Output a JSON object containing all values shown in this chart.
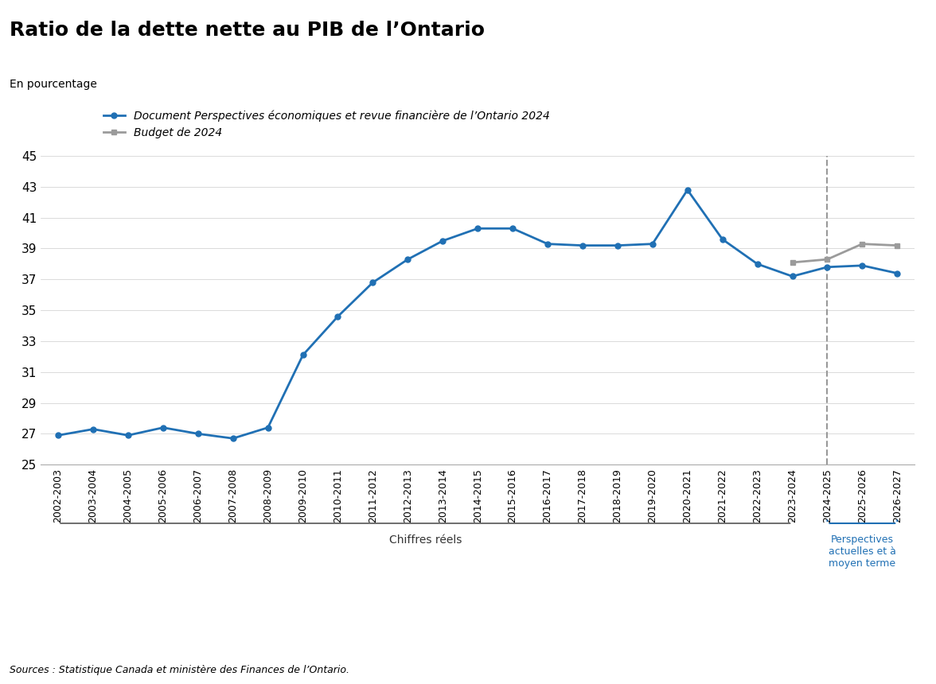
{
  "title": "Ratio de la dette nette au PIB de l’Ontario",
  "ylabel": "En pourcentage",
  "source": "Sources : Statistique Canada et ministère des Finances de l’Ontario.",
  "blue_series_labels": [
    "2002-2003",
    "2003-2004",
    "2004-2005",
    "2005-2006",
    "2006-2007",
    "2007-2008",
    "2008-2009",
    "2009-2010",
    "2010-2011",
    "2011-2012",
    "2012-2013",
    "2013-2014",
    "2014-2015",
    "2015-2016",
    "2016-2017",
    "2017-2018",
    "2018-2019",
    "2019-2020",
    "2020-2021",
    "2021-2022",
    "2022-2023",
    "2023-2024",
    "2024-2025",
    "2025-2026",
    "2026-2027"
  ],
  "blue_series_values": [
    26.9,
    27.3,
    26.9,
    27.4,
    27.0,
    26.7,
    27.4,
    32.1,
    34.6,
    36.8,
    38.3,
    39.5,
    40.3,
    40.3,
    39.3,
    39.2,
    39.2,
    39.3,
    42.8,
    39.6,
    38.0,
    37.2,
    37.8,
    37.9,
    37.4
  ],
  "grey_series_labels": [
    "2023-2024",
    "2024-2025",
    "2025-2026",
    "2026-2027"
  ],
  "grey_series_values": [
    38.1,
    38.3,
    39.3,
    39.2
  ],
  "blue_color": "#2070B4",
  "grey_color": "#9B9B9B",
  "arrow_color": "#F5A623",
  "dashed_line_x_label": "2024-2025",
  "ylim": [
    25,
    45
  ],
  "yticks": [
    25,
    27,
    29,
    31,
    33,
    35,
    37,
    39,
    41,
    43,
    45
  ],
  "legend_blue_text": "Document Perspectives économiques et revue financière de l’Ontario 2024",
  "legend_grey_text": "Budget de 2024",
  "label_chiffres_reels": "Chiffres réels",
  "label_perspectives": "Perspectives\nactuelles et à\nmoyen terme",
  "background_color": "#FFFFFF"
}
